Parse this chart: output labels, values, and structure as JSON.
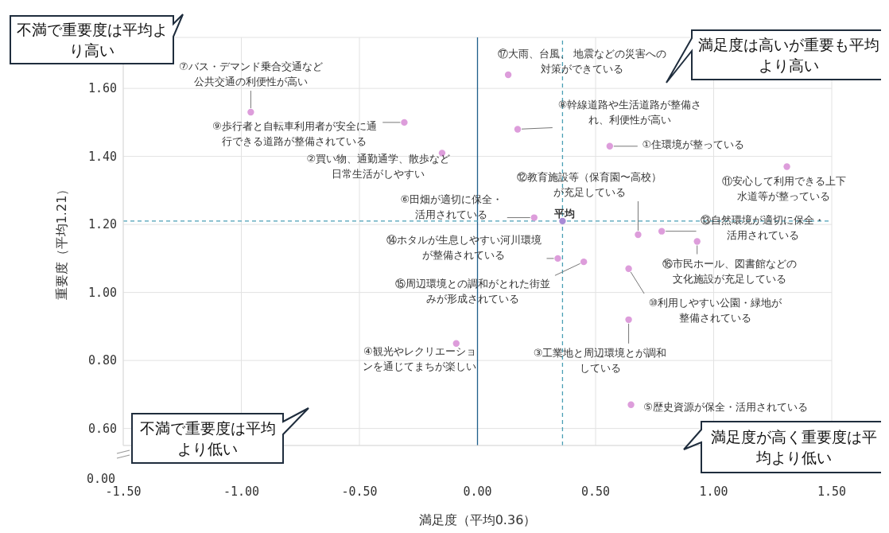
{
  "chart_data": {
    "type": "scatter",
    "xlabel": "満足度（平均0.36）",
    "ylabel": "重要度（平均1.21）",
    "xlim": [
      -1.5,
      1.5
    ],
    "xticks": [
      {
        "value": -1.5,
        "label": "-1.50"
      },
      {
        "value": -1,
        "label": "-1.00"
      },
      {
        "value": -0.5,
        "label": "-0.50"
      },
      {
        "value": 0,
        "label": "0.00"
      },
      {
        "value": 0.5,
        "label": "0.50"
      },
      {
        "value": 1,
        "label": "1.00"
      },
      {
        "value": 1.5,
        "label": "1.50"
      }
    ],
    "ylim": [
      0.55,
      1.75
    ],
    "yticks": [
      {
        "value": 0.6,
        "label": "0.60"
      },
      {
        "value": 0.8,
        "label": "0.80"
      },
      {
        "value": 1,
        "label": "1.00"
      },
      {
        "value": 1.2,
        "label": "1.20"
      },
      {
        "value": 1.4,
        "label": "1.40"
      },
      {
        "value": 1.6,
        "label": "1.60"
      }
    ],
    "grid": true,
    "marker": "circle",
    "series": [
      {
        "color": "#dd9ddb",
        "x": [
          -0.96,
          -0.31,
          -0.15,
          0.13,
          0.17,
          0.56,
          1.31,
          0.68,
          0.24,
          0.78,
          0.93,
          0.64,
          0.34,
          0.45,
          0.64,
          0.65,
          -0.09
        ],
        "values": [
          1.53,
          1.5,
          1.41,
          1.64,
          1.48,
          1.43,
          1.37,
          1.17,
          1.22,
          1.18,
          1.15,
          1.07,
          1.1,
          1.09,
          0.92,
          0.67,
          0.85
        ]
      },
      {
        "color": "#a78ad6",
        "x": [
          0.36
        ],
        "values": [
          1.21
        ]
      }
    ],
    "ref_lines": [
      {
        "axis": "x",
        "value": 0,
        "color": "#1f5f8b",
        "line_style": "solid"
      },
      {
        "axis": "x",
        "value": 0.36,
        "color": "#4a9fb5",
        "line_style": "dashed"
      },
      {
        "axis": "y",
        "value": 1.21,
        "color": "#4a9fb5",
        "line_style": "dashed"
      }
    ],
    "annotations": [
      "不満で重要度は平均より高い",
      "満足度は高いが重要も平均より高い",
      "不満で重要度は平均より低い",
      "満足度が高く重要度は平均より低い",
      "0.00",
      {
        "text": "⑦バス・デマンド乗合交通など公共交通の利便性が高い",
        "x": -0.96,
        "y": 1.53
      },
      {
        "text": "⑨歩行者と自転車利用者が安全に通行できる道路が整備されている",
        "x": -0.31,
        "y": 1.5
      },
      {
        "text": "②買い物、通勤通学、散歩など日常生活がしやすい",
        "x": -0.15,
        "y": 1.41
      },
      {
        "text": "⑰大雨、台風、 地震などの災害への対策ができている",
        "x": 0.13,
        "y": 1.64
      },
      {
        "text": "⑧幹線道路や生活道路が整備され、利便性が高い",
        "x": 0.17,
        "y": 1.48
      },
      {
        "text": "①住環境が整っている",
        "x": 0.56,
        "y": 1.43
      },
      {
        "text": "⑪安心して利用できる上下水道等が整っている",
        "x": 1.31,
        "y": 1.37
      },
      {
        "text": "⑫教育施設等（保育園〜高校）が充足している",
        "x": 0.68,
        "y": 1.17
      },
      {
        "text": "⑥田畑が適切に保全・活用されている",
        "x": 0.24,
        "y": 1.22
      },
      {
        "text": "平均",
        "x": 0.36,
        "y": 1.21
      },
      {
        "text": "⑬自然環境が適切に保全・活用されている",
        "x": 0.78,
        "y": 1.18
      },
      {
        "text": "⑯市民ホール、図書館などの文化施設が充足している",
        "x": 0.93,
        "y": 1.15
      },
      {
        "text": "⑩利用しやすい公園・緑地が整備されている",
        "x": 0.64,
        "y": 1.07
      },
      {
        "text": "⑭ホタルが生息しやすい河川環境が整備されている",
        "x": 0.34,
        "y": 1.1
      },
      {
        "text": "⑮周辺環境との調和がとれた街並みが形成されている",
        "x": 0.45,
        "y": 1.09
      },
      {
        "text": "③工業地と周辺環境とが調和している",
        "x": 0.64,
        "y": 0.92
      },
      {
        "text": "⑤歴史資源が保全・活用されている",
        "x": 0.65,
        "y": 0.67
      },
      {
        "text": "④観光やレクリエーションを通じてまちが楽しい",
        "x": -0.09,
        "y": 0.85
      }
    ]
  }
}
